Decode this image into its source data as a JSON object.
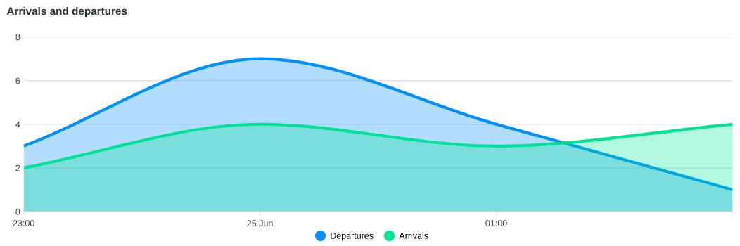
{
  "chart_data": {
    "type": "area",
    "title": "Arrivals and departures",
    "categories": [
      "23:00",
      "25 Jun",
      "01:00",
      null
    ],
    "series": [
      {
        "name": "Departures",
        "color": "#008ffb",
        "values": [
          3,
          7,
          4,
          1
        ]
      },
      {
        "name": "Arrivals",
        "color": "#00e396",
        "values": [
          2,
          4,
          3,
          4
        ]
      }
    ],
    "ylim": [
      0,
      8
    ],
    "yticks": [
      0,
      2,
      4,
      6,
      8
    ],
    "grid": "y",
    "legend": "bottom",
    "marker": "none",
    "line_style": "solid"
  }
}
